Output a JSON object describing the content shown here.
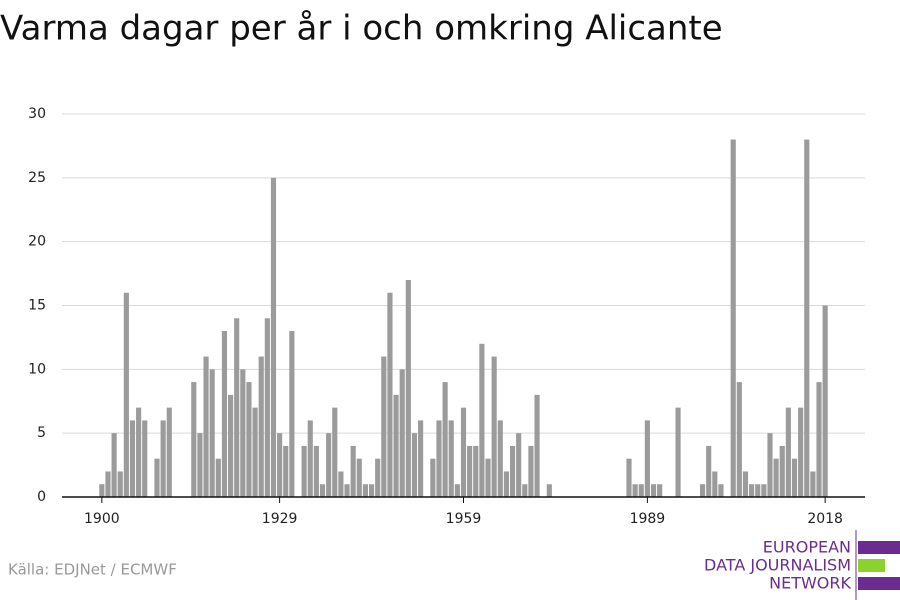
{
  "chart_data": {
    "type": "bar",
    "title": "Varma dagar per år i och omkring Alicante",
    "source": "Källa: EDJNet / ECMWF",
    "logo": [
      "EUROPEAN",
      "DATA JOURNALISM",
      "NETWORK"
    ],
    "color": "#9b9b9b",
    "x": [
      1900,
      1901,
      1902,
      1903,
      1904,
      1905,
      1906,
      1907,
      1908,
      1909,
      1910,
      1911,
      1912,
      1913,
      1914,
      1915,
      1916,
      1917,
      1918,
      1919,
      1920,
      1921,
      1922,
      1923,
      1924,
      1925,
      1926,
      1927,
      1928,
      1929,
      1930,
      1931,
      1932,
      1933,
      1934,
      1935,
      1936,
      1937,
      1938,
      1939,
      1940,
      1941,
      1942,
      1943,
      1944,
      1945,
      1946,
      1947,
      1948,
      1949,
      1950,
      1951,
      1952,
      1953,
      1954,
      1955,
      1956,
      1957,
      1958,
      1959,
      1960,
      1961,
      1962,
      1963,
      1964,
      1965,
      1966,
      1967,
      1968,
      1969,
      1970,
      1971,
      1972,
      1973,
      1974,
      1975,
      1976,
      1977,
      1978,
      1979,
      1980,
      1981,
      1982,
      1983,
      1984,
      1985,
      1986,
      1987,
      1988,
      1989,
      1990,
      1991,
      1992,
      1993,
      1994,
      1995,
      1996,
      1997,
      1998,
      1999,
      2000,
      2001,
      2002,
      2003,
      2004,
      2005,
      2006,
      2007,
      2008,
      2009,
      2010,
      2011,
      2012,
      2013,
      2014,
      2015,
      2016,
      2017,
      2018
    ],
    "values": [
      1,
      2,
      5,
      2,
      16,
      6,
      7,
      6,
      0,
      3,
      6,
      7,
      0,
      0,
      0,
      9,
      5,
      11,
      10,
      3,
      13,
      8,
      14,
      10,
      9,
      7,
      11,
      14,
      25,
      5,
      4,
      13,
      0,
      4,
      6,
      4,
      1,
      5,
      7,
      2,
      1,
      4,
      3,
      1,
      1,
      3,
      11,
      16,
      8,
      10,
      17,
      5,
      6,
      0,
      3,
      6,
      9,
      6,
      1,
      7,
      4,
      4,
      12,
      3,
      11,
      6,
      2,
      4,
      5,
      1,
      4,
      8,
      0,
      1,
      0,
      0,
      0,
      0,
      0,
      0,
      0,
      0,
      0,
      0,
      0,
      0,
      3,
      1,
      1,
      6,
      1,
      1,
      0,
      0,
      7,
      0,
      0,
      0,
      1,
      4,
      2,
      1,
      0,
      28,
      9,
      2,
      1,
      1,
      1,
      5,
      3,
      4,
      7,
      3,
      7,
      28,
      2,
      9,
      15
    ],
    "xlim": [
      1893.5,
      2024.5
    ],
    "xticks": [
      1900,
      1929,
      1959,
      1989,
      2018
    ],
    "ylim": [
      0,
      30
    ],
    "yticks": [
      0,
      5,
      10,
      15,
      20,
      25,
      30
    ],
    "grid": true
  }
}
